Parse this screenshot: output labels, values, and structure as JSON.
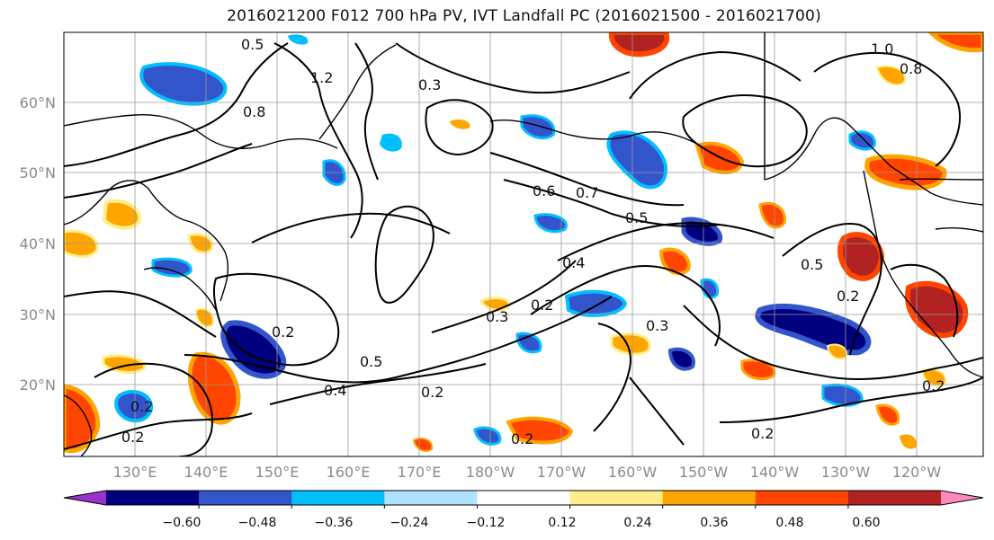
{
  "title": "2016021200 F012 700 hPa PV, IVT Landfall PC (2016021500 - 2016021700)",
  "y_ticks": [
    "60°N",
    "50°N",
    "40°N",
    "30°N",
    "20°N"
  ],
  "x_ticks": [
    "130°E",
    "140°E",
    "150°E",
    "160°E",
    "170°E",
    "180°W",
    "170°W",
    "160°W",
    "150°W",
    "140°W",
    "130°W",
    "120°W"
  ],
  "colorbar": {
    "colors": [
      "#9933cc",
      "#00007f",
      "#3355cc",
      "#00bfff",
      "#b0e2ff",
      "#ffffff",
      "#ffee88",
      "#ffa500",
      "#ff4500",
      "#b22222",
      "#ff88bb"
    ],
    "tick_labels": [
      "−0.60",
      "−0.48",
      "−0.36",
      "−0.24",
      "−0.12",
      "0.12",
      "0.24",
      "0.36",
      "0.48",
      "0.60"
    ]
  },
  "contour_labels": [
    "0.5",
    "1.2",
    "0.8",
    "0.3",
    "0.7",
    "0.6",
    "0.5",
    "0.4",
    "0.2",
    "0.3",
    "0.2",
    "0.5",
    "0.4",
    "0.2",
    "0.2",
    "0.2",
    "0.3",
    "1.0",
    "0.8",
    "0.2",
    "0.2",
    "0.5",
    "0.2",
    "0.2"
  ]
}
